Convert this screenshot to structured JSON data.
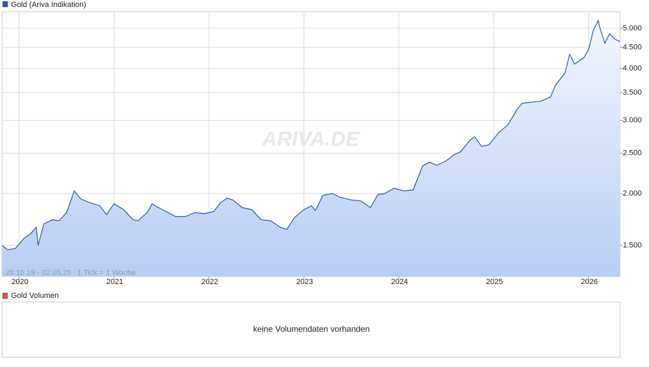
{
  "chart_data": {
    "type": "line",
    "log_scale": true,
    "grid": true,
    "range_label": "28.10.19 - 02.05.26",
    "tick_note": "1 Tick = 1 Woche",
    "watermark": "ARIVA.DE",
    "xlim": [
      2019.82,
      2026.33
    ],
    "xticks": [
      2020,
      2021,
      2022,
      2023,
      2024,
      2025,
      2026
    ],
    "ylim": [
      1263,
      5480
    ],
    "yticks": [
      {
        "value": 1500,
        "label": "1.500"
      },
      {
        "value": 2000,
        "label": "2.000"
      },
      {
        "value": 2500,
        "label": "2.500"
      },
      {
        "value": 3000,
        "label": "3.000"
      },
      {
        "value": 3500,
        "label": "3.500"
      },
      {
        "value": 4000,
        "label": "4.000"
      },
      {
        "value": 4500,
        "label": "4.500"
      },
      {
        "value": 5000,
        "label": "5.000"
      }
    ],
    "series": [
      {
        "name": "Gold (Ariva Indikation)",
        "color": "#2a5cad",
        "x": [
          2019.82,
          2019.88,
          2019.96,
          2020.05,
          2020.12,
          2020.18,
          2020.2,
          2020.26,
          2020.35,
          2020.42,
          2020.5,
          2020.58,
          2020.65,
          2020.75,
          2020.85,
          2020.92,
          2021.0,
          2021.1,
          2021.2,
          2021.25,
          2021.35,
          2021.4,
          2021.45,
          2021.55,
          2021.65,
          2021.75,
          2021.85,
          2021.95,
          2022.05,
          2022.12,
          2022.19,
          2022.25,
          2022.35,
          2022.45,
          2022.55,
          2022.65,
          2022.75,
          2022.82,
          2022.9,
          2023.0,
          2023.08,
          2023.12,
          2023.2,
          2023.3,
          2023.38,
          2023.5,
          2023.6,
          2023.7,
          2023.78,
          2023.85,
          2023.95,
          2024.05,
          2024.15,
          2024.25,
          2024.32,
          2024.4,
          2024.5,
          2024.58,
          2024.65,
          2024.75,
          2024.8,
          2024.87,
          2024.95,
          2025.05,
          2025.15,
          2025.25,
          2025.3,
          2025.4,
          2025.5,
          2025.6,
          2025.65,
          2025.75,
          2025.8,
          2025.85,
          2025.95,
          2026.0,
          2026.05,
          2026.1,
          2026.12,
          2026.17,
          2026.22,
          2026.28,
          2026.33
        ],
        "values": [
          1500,
          1465,
          1475,
          1560,
          1600,
          1660,
          1500,
          1690,
          1730,
          1720,
          1800,
          2030,
          1940,
          1900,
          1870,
          1780,
          1890,
          1830,
          1730,
          1720,
          1800,
          1890,
          1860,
          1810,
          1760,
          1760,
          1800,
          1790,
          1810,
          1900,
          1950,
          1930,
          1850,
          1830,
          1730,
          1720,
          1660,
          1640,
          1750,
          1830,
          1870,
          1820,
          1980,
          2000,
          1960,
          1930,
          1920,
          1850,
          1990,
          2000,
          2060,
          2030,
          2040,
          2330,
          2380,
          2340,
          2400,
          2480,
          2520,
          2690,
          2740,
          2600,
          2620,
          2800,
          2930,
          3200,
          3300,
          3320,
          3340,
          3420,
          3650,
          3900,
          4330,
          4100,
          4250,
          4450,
          4950,
          5220,
          5000,
          4600,
          4850,
          4700,
          4650
        ]
      }
    ],
    "volume_panel": {
      "title": "Gold Volumen",
      "message": "keine Volumendaten vorhanden"
    }
  }
}
